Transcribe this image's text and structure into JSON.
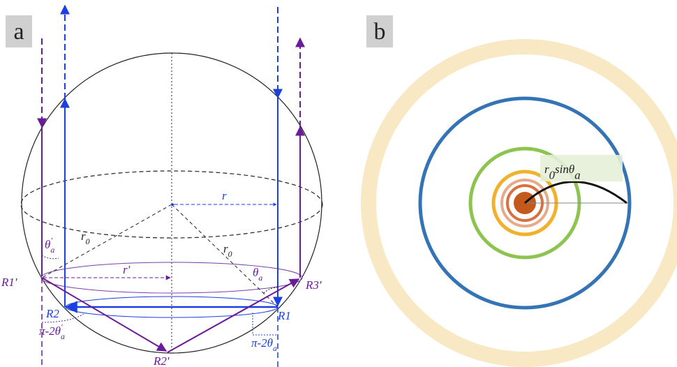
{
  "panels": [
    {
      "label": "a"
    },
    {
      "label": "b"
    }
  ],
  "annotations": [
    {
      "parts": [
        {
          "t": "r"
        }
      ]
    },
    {
      "parts": [
        {
          "t": "r"
        },
        {
          "t": "0",
          "sub": true
        }
      ]
    },
    {
      "parts": [
        {
          "t": "r"
        },
        {
          "t": "0",
          "sub": true
        }
      ]
    },
    {
      "parts": [
        {
          "t": "r'"
        }
      ]
    },
    {
      "parts": [
        {
          "t": "θ"
        },
        {
          "t": "a",
          "sub": true
        },
        {
          "t": "'",
          "sup": true
        }
      ]
    },
    {
      "parts": [
        {
          "t": "θ"
        },
        {
          "t": "a",
          "sub": true
        }
      ]
    },
    {
      "parts": [
        {
          "t": "R1'"
        }
      ]
    },
    {
      "parts": [
        {
          "t": "R2"
        }
      ]
    },
    {
      "parts": [
        {
          "t": "R1"
        }
      ]
    },
    {
      "parts": [
        {
          "t": "R3'"
        }
      ]
    },
    {
      "parts": [
        {
          "t": "R2'"
        }
      ]
    },
    {
      "parts": [
        {
          "t": "π-2θ"
        },
        {
          "t": "a",
          "sub": true
        },
        {
          "t": "'",
          "sup": true
        }
      ]
    },
    {
      "parts": [
        {
          "t": "π-2θ"
        },
        {
          "t": "a",
          "sub": true
        }
      ]
    },
    {
      "parts": [
        {
          "t": "r"
        },
        {
          "t": "0",
          "sub": true
        },
        {
          "t": "sinθ"
        },
        {
          "t": "a",
          "sub": true
        }
      ]
    }
  ]
}
